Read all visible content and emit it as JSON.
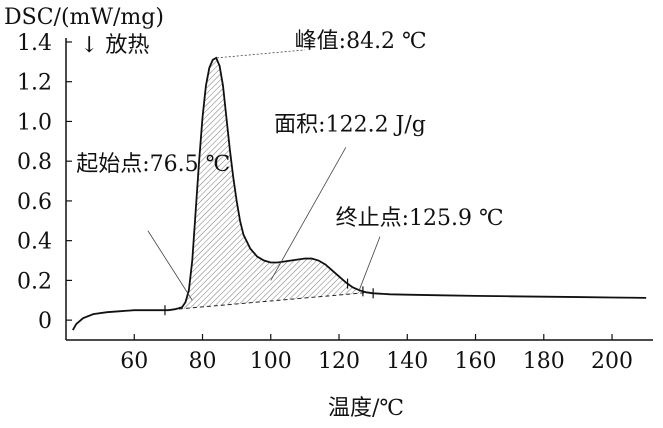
{
  "chart_data": {
    "type": "line",
    "ylabel": "DSC/(mW/mg)",
    "ylabel_note": "↓ 放热",
    "xlabel": "温度/℃",
    "xlim": [
      40,
      212
    ],
    "ylim": [
      -0.1,
      1.42
    ],
    "xticks": [
      60,
      80,
      100,
      120,
      140,
      160,
      180,
      200
    ],
    "yticks": [
      0,
      0.2,
      0.4,
      0.6,
      0.8,
      1.0,
      1.2,
      1.4
    ],
    "ytick_labels": [
      "0",
      "0.2",
      "0.4",
      "0.6",
      "0.8",
      "1.0",
      "1.2",
      "1.4"
    ],
    "series": [
      {
        "x": [
          42,
          43,
          45,
          48,
          52,
          56,
          60,
          64,
          68,
          70,
          72,
          74,
          75,
          76,
          77,
          78,
          79,
          80,
          81,
          82,
          83,
          84,
          85,
          86,
          87,
          88,
          89,
          90,
          91,
          92,
          94,
          96,
          98,
          100,
          102,
          104,
          106,
          108,
          110,
          112,
          114,
          116,
          118,
          120,
          122,
          124,
          126,
          128,
          130,
          135,
          140,
          150,
          160,
          170,
          180,
          190,
          200,
          210
        ],
        "y": [
          -0.05,
          -0.02,
          0.01,
          0.03,
          0.04,
          0.045,
          0.05,
          0.05,
          0.05,
          0.05,
          0.055,
          0.065,
          0.09,
          0.15,
          0.3,
          0.55,
          0.8,
          1.02,
          1.18,
          1.27,
          1.31,
          1.32,
          1.28,
          1.18,
          1.02,
          0.86,
          0.72,
          0.6,
          0.5,
          0.43,
          0.36,
          0.32,
          0.3,
          0.29,
          0.29,
          0.295,
          0.3,
          0.305,
          0.31,
          0.31,
          0.3,
          0.28,
          0.25,
          0.22,
          0.19,
          0.165,
          0.15,
          0.14,
          0.135,
          0.13,
          0.128,
          0.125,
          0.122,
          0.12,
          0.118,
          0.116,
          0.114,
          0.112
        ]
      }
    ],
    "baseline": {
      "x": [
        69,
        129
      ],
      "y": [
        0.05,
        0.14
      ]
    },
    "integration_marks_x": [
      69,
      122.5,
      127,
      130
    ],
    "annotations": [
      {
        "text": "峰值:84.2 ℃",
        "x": 84.2,
        "y": 1.32,
        "label_x": 107,
        "label_y": 1.37
      },
      {
        "text": "面积:122.2 J/g",
        "x": 102,
        "y": 0.2,
        "label_x": 101,
        "label_y": 0.95
      },
      {
        "text": "起始点:76.5 ℃",
        "x": 76.5,
        "y": 0.1,
        "label_x": 43,
        "label_y": 0.75
      },
      {
        "text": "终止点:125.9 ℃",
        "x": 125.9,
        "y": 0.15,
        "label_x": 119,
        "label_y": 0.48
      }
    ],
    "grid": false,
    "legend": "none"
  }
}
